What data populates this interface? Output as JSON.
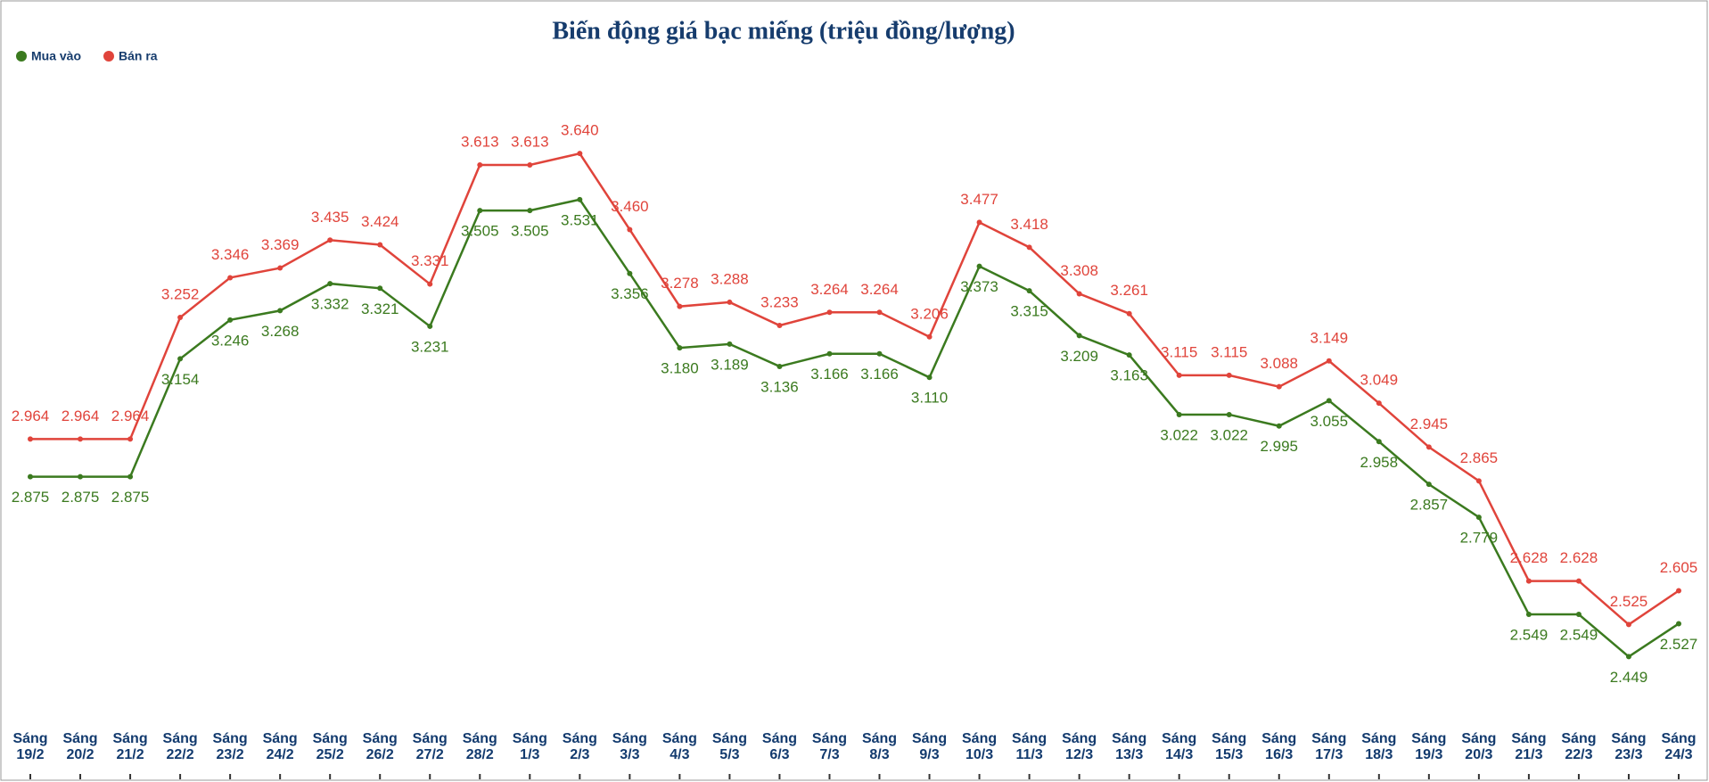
{
  "chart_data": {
    "type": "line",
    "title": "Biến động giá bạc miếng (triệu đồng/lượng)",
    "categories": [
      "Sáng 19/2",
      "Sáng 20/2",
      "Sáng 21/2",
      "Sáng 22/2",
      "Sáng 23/2",
      "Sáng 24/2",
      "Sáng 25/2",
      "Sáng 26/2",
      "Sáng 27/2",
      "Sáng 28/2",
      "Sáng 1/3",
      "Sáng 2/3",
      "Sáng 3/3",
      "Sáng 4/3",
      "Sáng 5/3",
      "Sáng 6/3",
      "Sáng 7/3",
      "Sáng 8/3",
      "Sáng 9/3",
      "Sáng 10/3",
      "Sáng 11/3",
      "Sáng 12/3",
      "Sáng 13/3",
      "Sáng 14/3",
      "Sáng 15/3",
      "Sáng 16/3",
      "Sáng 17/3",
      "Sáng 18/3",
      "Sáng 19/3",
      "Sáng 20/3",
      "Sáng 21/3",
      "Sáng 22/3",
      "Sáng 23/3",
      "Sáng 24/3"
    ],
    "series": [
      {
        "name": "Mua vào",
        "color": "#3b7a1f",
        "values": [
          2.875,
          2.875,
          2.875,
          3.154,
          3.246,
          3.268,
          3.332,
          3.321,
          3.231,
          3.505,
          3.505,
          3.531,
          3.356,
          3.18,
          3.189,
          3.136,
          3.166,
          3.166,
          3.11,
          3.373,
          3.315,
          3.209,
          3.163,
          3.022,
          3.022,
          2.995,
          3.055,
          2.958,
          2.857,
          2.779,
          2.549,
          2.549,
          2.449,
          2.527
        ],
        "value_labels": [
          "2.875",
          "2.875",
          "2.875",
          "3.154",
          "3.246",
          "3.268",
          "3.332",
          "3.321",
          "3.231",
          "3.505",
          "3.505",
          "3.531",
          "3.356",
          "3.180",
          "3.189",
          "3.136",
          "3.166",
          "3.166",
          "3.110",
          "3.373",
          "3.315",
          "3.209",
          "3.163",
          "3.022",
          "3.022",
          "2.995",
          "3.055",
          "2.958",
          "2.857",
          "2.779",
          "2.549",
          "2.549",
          "2.449",
          "2.527"
        ]
      },
      {
        "name": "Bán ra",
        "color": "#e0443b",
        "values": [
          2.964,
          2.964,
          2.964,
          3.252,
          3.346,
          3.369,
          3.435,
          3.424,
          3.331,
          3.613,
          3.613,
          3.64,
          3.46,
          3.278,
          3.288,
          3.233,
          3.264,
          3.264,
          3.206,
          3.477,
          3.418,
          3.308,
          3.261,
          3.115,
          3.115,
          3.088,
          3.149,
          3.049,
          2.945,
          2.865,
          2.628,
          2.628,
          2.525,
          2.605
        ],
        "value_labels": [
          "2.964",
          "2.964",
          "2.964",
          "3.252",
          "3.346",
          "3.369",
          "3.435",
          "3.424",
          "3.331",
          "3.613",
          "3.613",
          "3.640",
          "3.460",
          "3.278",
          "3.288",
          "3.233",
          "3.264",
          "3.264",
          "3.206",
          "3.477",
          "3.418",
          "3.308",
          "3.261",
          "3.115",
          "3.115",
          "3.088",
          "3.149",
          "3.049",
          "2.945",
          "2.865",
          "2.628",
          "2.628",
          "2.525",
          "2.605"
        ]
      }
    ],
    "ylim": [
      2.3,
      3.9
    ],
    "legend": "top-left"
  }
}
